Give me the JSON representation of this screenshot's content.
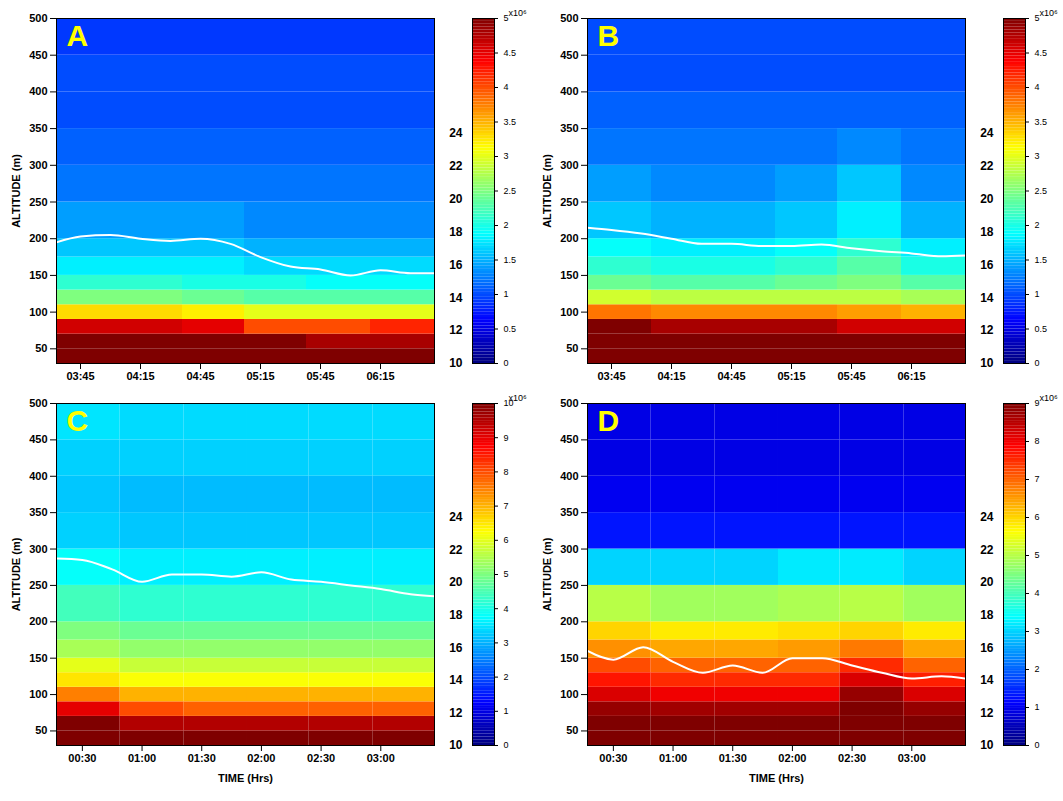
{
  "chart_data": [
    {
      "type": "heatmap",
      "title": "A",
      "ylabel": "ALTITUDE (m)",
      "xlim": [
        213,
        402
      ],
      "ylim": [
        30,
        500
      ],
      "xticks": [
        {
          "value": 225,
          "label": "03:45"
        },
        {
          "value": 255,
          "label": "04:15"
        },
        {
          "value": 285,
          "label": "04:45"
        },
        {
          "value": 315,
          "label": "05:15"
        },
        {
          "value": 345,
          "label": "05:45"
        },
        {
          "value": 375,
          "label": "06:15"
        }
      ],
      "yticks": [
        50,
        100,
        150,
        200,
        250,
        300,
        350,
        400,
        450,
        500
      ],
      "x_edges": [
        213,
        245,
        276,
        307,
        338,
        370,
        402
      ],
      "y_edges": [
        30,
        50,
        70,
        90,
        110,
        130,
        150,
        175,
        200,
        250,
        300,
        350,
        400,
        450,
        500
      ],
      "cells": [
        [
          5,
          5,
          5,
          5,
          5,
          5
        ],
        [
          5,
          5,
          5,
          5,
          4.8,
          4.8
        ],
        [
          4.6,
          4.6,
          4.5,
          4.0,
          4.0,
          4.2
        ],
        [
          3.3,
          3.3,
          3.2,
          3.0,
          3.0,
          3.0
        ],
        [
          2.5,
          2.5,
          2.4,
          2.3,
          2.3,
          2.3
        ],
        [
          2.1,
          2.1,
          2.0,
          2.0,
          1.9,
          1.9
        ],
        [
          1.8,
          1.8,
          1.8,
          1.7,
          1.7,
          1.7
        ],
        [
          1.6,
          1.6,
          1.6,
          1.5,
          1.5,
          1.5
        ],
        [
          1.4,
          1.4,
          1.4,
          1.3,
          1.3,
          1.3
        ],
        [
          1.2,
          1.2,
          1.2,
          1.2,
          1.2,
          1.2
        ],
        [
          1.1,
          1.1,
          1.1,
          1.1,
          1.1,
          1.1
        ],
        [
          1.0,
          1.0,
          1.0,
          1.0,
          1.0,
          1.0
        ],
        [
          1.0,
          1.0,
          1.0,
          1.0,
          1.0,
          1.0
        ],
        [
          0.9,
          0.9,
          0.9,
          0.9,
          0.9,
          0.9
        ]
      ],
      "line": {
        "color": "#ffffff",
        "x": [
          213,
          225,
          240,
          255,
          270,
          285,
          300,
          315,
          330,
          345,
          360,
          375,
          390,
          402
        ],
        "values": [
          195,
          203,
          205,
          200,
          197,
          200,
          193,
          175,
          162,
          158,
          150,
          157,
          153,
          153
        ]
      },
      "colorbar": {
        "range": [
          0,
          5
        ],
        "ticks": [
          0,
          0.5,
          1,
          1.5,
          2,
          2.5,
          3,
          3.5,
          4,
          4.5,
          5
        ],
        "label": "x10⁶",
        "colors": [
          "#00007f",
          "#0000ff",
          "#007fff",
          "#00ffff",
          "#7fff7f",
          "#ffff00",
          "#ff7f00",
          "#ff0000",
          "#7f0000"
        ]
      },
      "colorbar_left": {
        "range": [
          10,
          31
        ],
        "ticks": [
          10,
          12,
          14,
          16,
          18,
          20,
          22,
          24
        ]
      }
    },
    {
      "type": "heatmap",
      "title": "B",
      "ylabel": "ALTITUDE (m)",
      "xlim": [
        213,
        402
      ],
      "ylim": [
        30,
        500
      ],
      "xticks": [
        {
          "value": 225,
          "label": "03:45"
        },
        {
          "value": 255,
          "label": "04:15"
        },
        {
          "value": 285,
          "label": "04:45"
        },
        {
          "value": 315,
          "label": "05:15"
        },
        {
          "value": 345,
          "label": "05:45"
        },
        {
          "value": 375,
          "label": "06:15"
        }
      ],
      "yticks": [
        50,
        100,
        150,
        200,
        250,
        300,
        350,
        400,
        450,
        500
      ],
      "x_edges": [
        213,
        245,
        276,
        307,
        338,
        370,
        402
      ],
      "y_edges": [
        30,
        50,
        70,
        90,
        110,
        130,
        150,
        175,
        200,
        250,
        300,
        350,
        400,
        450,
        500
      ],
      "cells": [
        [
          5,
          5,
          5,
          5,
          5,
          5
        ],
        [
          5,
          5,
          5,
          5,
          5,
          5
        ],
        [
          5,
          4.8,
          4.8,
          4.8,
          4.6,
          4.6
        ],
        [
          3.8,
          3.7,
          3.7,
          3.7,
          3.6,
          3.5
        ],
        [
          2.9,
          2.8,
          2.8,
          2.8,
          2.8,
          2.7
        ],
        [
          2.4,
          2.3,
          2.3,
          2.4,
          2.5,
          2.3
        ],
        [
          2.1,
          2.0,
          2.0,
          2.1,
          2.3,
          2.0
        ],
        [
          1.9,
          1.8,
          1.8,
          1.9,
          2.1,
          1.8
        ],
        [
          1.6,
          1.5,
          1.5,
          1.6,
          1.8,
          1.5
        ],
        [
          1.4,
          1.3,
          1.3,
          1.4,
          1.6,
          1.3
        ],
        [
          1.2,
          1.2,
          1.2,
          1.2,
          1.3,
          1.2
        ],
        [
          1.1,
          1.1,
          1.1,
          1.1,
          1.1,
          1.1
        ],
        [
          1.0,
          1.0,
          1.0,
          1.0,
          1.0,
          1.0
        ],
        [
          1.0,
          1.0,
          1.0,
          1.0,
          1.0,
          1.0
        ]
      ],
      "line": {
        "color": "#ffffff",
        "x": [
          213,
          225,
          240,
          255,
          270,
          285,
          300,
          315,
          330,
          345,
          360,
          375,
          390,
          402
        ],
        "values": [
          215,
          212,
          207,
          200,
          193,
          193,
          190,
          190,
          192,
          187,
          183,
          180,
          176,
          177
        ]
      },
      "colorbar": {
        "range": [
          0,
          5
        ],
        "ticks": [
          0,
          0.5,
          1,
          1.5,
          2,
          2.5,
          3,
          3.5,
          4,
          4.5,
          5
        ],
        "label": "x10⁶",
        "colors": [
          "#00007f",
          "#0000ff",
          "#007fff",
          "#00ffff",
          "#7fff7f",
          "#ffff00",
          "#ff7f00",
          "#ff0000",
          "#7f0000"
        ]
      },
      "colorbar_left": {
        "range": [
          10,
          31
        ],
        "ticks": [
          10,
          12,
          14,
          16,
          18,
          20,
          22,
          24
        ]
      }
    },
    {
      "type": "heatmap",
      "title": "C",
      "ylabel": "ALTITUDE (m)",
      "xlabel": "TIME (Hrs)",
      "xlim": [
        17,
        207
      ],
      "ylim": [
        30,
        500
      ],
      "xticks": [
        {
          "value": 30,
          "label": "00:30"
        },
        {
          "value": 60,
          "label": "01:00"
        },
        {
          "value": 90,
          "label": "01:30"
        },
        {
          "value": 120,
          "label": "02:00"
        },
        {
          "value": 150,
          "label": "02:30"
        },
        {
          "value": 180,
          "label": "03:00"
        }
      ],
      "yticks": [
        50,
        100,
        150,
        200,
        250,
        300,
        350,
        400,
        450,
        500
      ],
      "x_edges": [
        17,
        49,
        81,
        113,
        144,
        176,
        207
      ],
      "y_edges": [
        30,
        50,
        70,
        90,
        110,
        130,
        150,
        175,
        200,
        250,
        300,
        350,
        400,
        450,
        500
      ],
      "cells": [
        [
          10,
          10,
          10,
          10,
          10,
          10
        ],
        [
          10,
          9.5,
          9.5,
          9.5,
          9.5,
          9.5
        ],
        [
          9,
          8,
          7.8,
          7.8,
          7.8,
          7.8
        ],
        [
          7.5,
          7,
          7,
          7,
          7,
          7
        ],
        [
          6.5,
          6.2,
          6.2,
          6.2,
          6.2,
          6.2
        ],
        [
          6,
          5.7,
          5.7,
          5.7,
          5.7,
          5.7
        ],
        [
          5.4,
          5.2,
          5.2,
          5.2,
          5.2,
          5.2
        ],
        [
          5,
          4.8,
          4.8,
          4.8,
          4.8,
          4.8
        ],
        [
          4.4,
          4.2,
          4.2,
          4.2,
          4.2,
          4.2
        ],
        [
          3.8,
          3.6,
          3.6,
          3.6,
          3.6,
          3.6
        ],
        [
          3.3,
          3.2,
          3.2,
          3.2,
          3.2,
          3.2
        ],
        [
          3.2,
          3.1,
          3.1,
          3.1,
          3.1,
          3.1
        ],
        [
          3.3,
          3.3,
          3.3,
          3.3,
          3.3,
          3.3
        ],
        [
          3.5,
          3.4,
          3.4,
          3.4,
          3.4,
          3.4
        ]
      ],
      "line": {
        "color": "#ffffff",
        "x": [
          17,
          30,
          45,
          60,
          75,
          90,
          105,
          120,
          135,
          150,
          165,
          180,
          195,
          207
        ],
        "values": [
          287,
          285,
          272,
          255,
          265,
          265,
          262,
          268,
          258,
          255,
          250,
          245,
          238,
          235
        ]
      },
      "colorbar": {
        "range": [
          0,
          10
        ],
        "ticks": [
          0,
          1,
          2,
          3,
          4,
          5,
          6,
          7,
          8,
          9,
          10
        ],
        "label": "x10⁶",
        "colors": [
          "#00007f",
          "#0000ff",
          "#007fff",
          "#00ffff",
          "#7fff7f",
          "#ffff00",
          "#ff7f00",
          "#ff0000",
          "#7f0000"
        ]
      },
      "colorbar_left": {
        "range": [
          10,
          31
        ],
        "ticks": [
          10,
          12,
          14,
          16,
          18,
          20,
          22,
          24
        ]
      }
    },
    {
      "type": "heatmap",
      "title": "D",
      "ylabel": "ALTITUDE (m)",
      "xlabel": "TIME (Hrs)",
      "xlim": [
        17,
        207
      ],
      "ylim": [
        30,
        500
      ],
      "xticks": [
        {
          "value": 30,
          "label": "00:30"
        },
        {
          "value": 60,
          "label": "01:00"
        },
        {
          "value": 90,
          "label": "01:30"
        },
        {
          "value": 120,
          "label": "02:00"
        },
        {
          "value": 150,
          "label": "02:30"
        },
        {
          "value": 180,
          "label": "03:00"
        }
      ],
      "yticks": [
        50,
        100,
        150,
        200,
        250,
        300,
        350,
        400,
        450,
        500
      ],
      "x_edges": [
        17,
        49,
        81,
        113,
        144,
        176,
        207
      ],
      "y_edges": [
        30,
        50,
        70,
        90,
        110,
        130,
        150,
        175,
        200,
        250,
        300,
        350,
        400,
        450,
        500
      ],
      "cells": [
        [
          9,
          9,
          9,
          9,
          9,
          9
        ],
        [
          9,
          9,
          9,
          9,
          9,
          9
        ],
        [
          8.8,
          8.7,
          8.7,
          8.7,
          9,
          8.8
        ],
        [
          8.2,
          8.0,
          8.0,
          8.0,
          8.8,
          8.2
        ],
        [
          7.7,
          7.5,
          7.5,
          7.5,
          8.2,
          7.6
        ],
        [
          7.2,
          7.0,
          7.0,
          7.0,
          7.5,
          7.0
        ],
        [
          6.6,
          6.4,
          6.4,
          6.5,
          6.8,
          6.4
        ],
        [
          6.0,
          5.8,
          5.8,
          5.9,
          6.0,
          5.8
        ],
        [
          5.0,
          4.8,
          4.8,
          4.9,
          5.0,
          4.8
        ],
        [
          3.0,
          3.0,
          3.0,
          3.2,
          3.2,
          3.0
        ],
        [
          1.3,
          1.3,
          1.3,
          1.3,
          1.3,
          1.3
        ],
        [
          1.0,
          1.0,
          1.0,
          1.0,
          1.0,
          1.0
        ],
        [
          0.9,
          0.9,
          0.9,
          0.9,
          0.9,
          0.9
        ],
        [
          0.9,
          0.9,
          0.9,
          0.9,
          0.9,
          0.9
        ]
      ],
      "line": {
        "color": "#ffffff",
        "x": [
          17,
          30,
          45,
          60,
          75,
          90,
          105,
          120,
          135,
          150,
          165,
          180,
          195,
          207
        ],
        "values": [
          160,
          148,
          165,
          145,
          130,
          140,
          130,
          150,
          150,
          140,
          130,
          122,
          125,
          122
        ]
      },
      "colorbar": {
        "range": [
          0,
          9
        ],
        "ticks": [
          0,
          1,
          2,
          3,
          4,
          5,
          6,
          7,
          8,
          9
        ],
        "label": "x10⁶",
        "colors": [
          "#00007f",
          "#0000ff",
          "#007fff",
          "#00ffff",
          "#7fff7f",
          "#ffff00",
          "#ff7f00",
          "#ff0000",
          "#7f0000"
        ]
      },
      "colorbar_left": {
        "range": [
          10,
          31
        ],
        "ticks": [
          10,
          12,
          14,
          16,
          18,
          20,
          22,
          24
        ]
      }
    }
  ]
}
